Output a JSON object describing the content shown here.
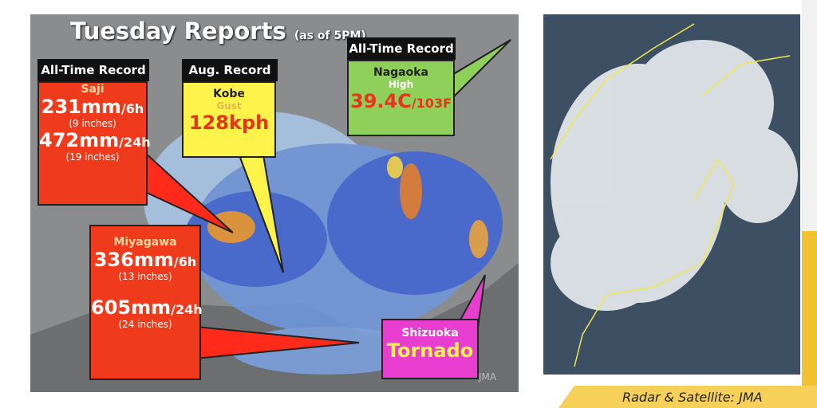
{
  "title": "Tuesday Reports",
  "subtitle": "(as of 5PM)",
  "callouts": [
    {
      "header": "All-Time Record",
      "place": "Saji",
      "lines": [
        {
          "big": "231mm",
          "small": "/6h"
        },
        {
          "note": "(9 inches)"
        },
        {
          "big": "472mm",
          "small": "/24h"
        },
        {
          "note": "(19 inches)"
        }
      ]
    },
    {
      "header": "Aug. Record",
      "place": "Kobe",
      "label": "Gust",
      "lines": [
        {
          "big": "128kph"
        }
      ]
    },
    {
      "header": "All-Time Record",
      "place": "Nagaoka",
      "label": "High",
      "lines": [
        {
          "big": "39.4C",
          "small": "/103F"
        }
      ]
    },
    {
      "place": "Miyagawa",
      "lines": [
        {
          "big": "336mm",
          "small": "/6h"
        },
        {
          "note": "(13 inches)"
        },
        {
          "big": "605mm",
          "small": "/24h"
        },
        {
          "note": "(24 inches)"
        }
      ]
    },
    {
      "place": "Shizuoka",
      "lines": [
        {
          "big": "Tornado"
        }
      ]
    }
  ],
  "watermark": "JMA",
  "credit": "Radar & Satellite: JMA"
}
